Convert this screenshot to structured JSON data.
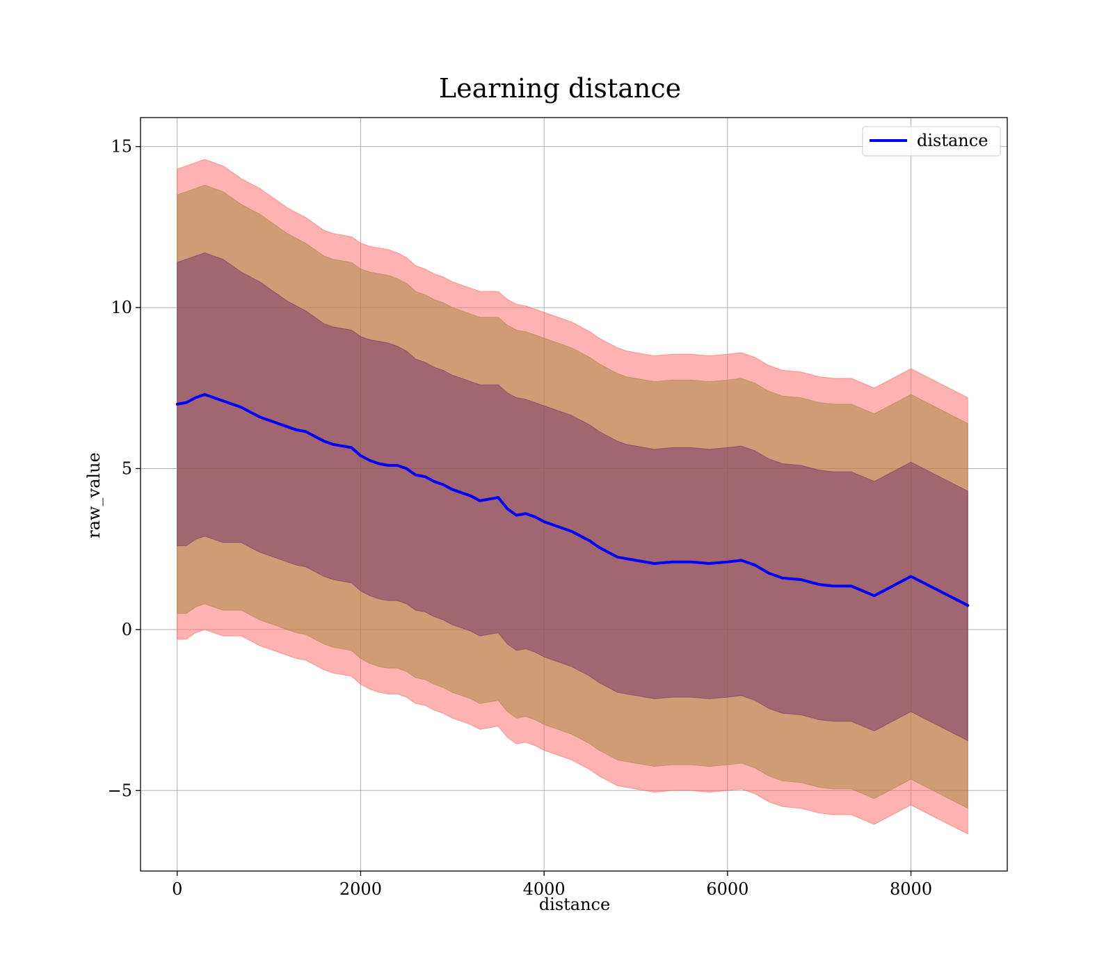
{
  "chart_data": {
    "type": "line",
    "title": "Learning distance",
    "xlabel": "distance",
    "ylabel": "raw_value",
    "xlim": [
      -400,
      9050
    ],
    "ylim": [
      -7.5,
      15.9
    ],
    "xticks": [
      0,
      2000,
      4000,
      6000,
      8000
    ],
    "xtick_labels": [
      "0",
      "2000",
      "4000",
      "6000",
      "8000"
    ],
    "yticks": [
      -5,
      0,
      5,
      10,
      15
    ],
    "ytick_labels": [
      "−5",
      "0",
      "5",
      "10",
      "15"
    ],
    "grid": true,
    "legend": {
      "placement": "top-right",
      "entries": [
        "distance"
      ]
    },
    "series": [
      {
        "name": "distance",
        "color": "#0000ff",
        "x": [
          0,
          100,
          200,
          300,
          400,
          500,
          600,
          700,
          800,
          900,
          1000,
          1100,
          1200,
          1300,
          1400,
          1500,
          1600,
          1700,
          1800,
          1900,
          2000,
          2100,
          2200,
          2300,
          2400,
          2500,
          2600,
          2700,
          2800,
          2900,
          3000,
          3100,
          3200,
          3300,
          3400,
          3500,
          3600,
          3700,
          3800,
          3900,
          4000,
          4100,
          4200,
          4300,
          4400,
          4500,
          4600,
          4700,
          4800,
          4900,
          5000,
          5200,
          5400,
          5600,
          5800,
          6000,
          6150,
          6300,
          6450,
          6600,
          6800,
          7000,
          7150,
          7350,
          7600,
          8000,
          8620
        ],
        "y": [
          7.0,
          7.05,
          7.2,
          7.3,
          7.2,
          7.1,
          7.0,
          6.9,
          6.75,
          6.6,
          6.5,
          6.4,
          6.3,
          6.2,
          6.15,
          6.0,
          5.85,
          5.75,
          5.7,
          5.65,
          5.4,
          5.25,
          5.15,
          5.1,
          5.1,
          5.0,
          4.8,
          4.75,
          4.6,
          4.5,
          4.35,
          4.25,
          4.15,
          4.0,
          4.05,
          4.1,
          3.75,
          3.55,
          3.6,
          3.5,
          3.35,
          3.25,
          3.15,
          3.05,
          2.9,
          2.75,
          2.55,
          2.4,
          2.25,
          2.2,
          2.15,
          2.05,
          2.1,
          2.1,
          2.05,
          2.1,
          2.15,
          2.0,
          1.75,
          1.6,
          1.55,
          1.4,
          1.35,
          1.35,
          1.05,
          1.65,
          0.75
        ]
      }
    ],
    "bands": [
      {
        "name": "outer",
        "color": "#ff6666",
        "opacity": 0.5,
        "upper": [
          14.3,
          14.4,
          14.5,
          14.6,
          14.5,
          14.4,
          14.2,
          14.0,
          13.85,
          13.7,
          13.5,
          13.3,
          13.1,
          12.95,
          12.8,
          12.6,
          12.4,
          12.3,
          12.25,
          12.2,
          12.0,
          11.9,
          11.85,
          11.8,
          11.7,
          11.55,
          11.3,
          11.2,
          11.05,
          10.95,
          10.8,
          10.7,
          10.6,
          10.5,
          10.5,
          10.5,
          10.25,
          10.1,
          10.05,
          9.95,
          9.85,
          9.75,
          9.65,
          9.55,
          9.4,
          9.25,
          9.05,
          8.9,
          8.75,
          8.65,
          8.6,
          8.5,
          8.55,
          8.55,
          8.5,
          8.55,
          8.6,
          8.45,
          8.2,
          8.05,
          8.0,
          7.85,
          7.8,
          7.8,
          7.5,
          8.1,
          7.2
        ],
        "lower": [
          -0.3,
          -0.3,
          -0.1,
          0.0,
          -0.1,
          -0.2,
          -0.2,
          -0.2,
          -0.35,
          -0.5,
          -0.6,
          -0.7,
          -0.8,
          -0.9,
          -0.95,
          -1.1,
          -1.25,
          -1.35,
          -1.4,
          -1.45,
          -1.7,
          -1.85,
          -1.95,
          -2.0,
          -2.0,
          -2.1,
          -2.3,
          -2.35,
          -2.5,
          -2.6,
          -2.75,
          -2.85,
          -2.95,
          -3.1,
          -3.05,
          -3.0,
          -3.35,
          -3.55,
          -3.5,
          -3.6,
          -3.75,
          -3.85,
          -3.95,
          -4.05,
          -4.2,
          -4.35,
          -4.55,
          -4.7,
          -4.85,
          -4.9,
          -4.95,
          -5.05,
          -5.0,
          -5.0,
          -5.05,
          -5.0,
          -4.95,
          -5.1,
          -5.35,
          -5.5,
          -5.55,
          -5.7,
          -5.75,
          -5.75,
          -6.05,
          -5.45,
          -6.35
        ]
      },
      {
        "name": "middle",
        "color": "#aa8844",
        "opacity": 0.55,
        "upper": [
          13.5,
          13.6,
          13.7,
          13.8,
          13.7,
          13.6,
          13.4,
          13.2,
          13.05,
          12.9,
          12.7,
          12.5,
          12.3,
          12.15,
          12.0,
          11.8,
          11.6,
          11.5,
          11.45,
          11.4,
          11.2,
          11.1,
          11.05,
          11.0,
          10.9,
          10.75,
          10.5,
          10.4,
          10.25,
          10.15,
          10.0,
          9.9,
          9.8,
          9.7,
          9.7,
          9.7,
          9.45,
          9.3,
          9.25,
          9.15,
          9.05,
          8.95,
          8.85,
          8.75,
          8.6,
          8.45,
          8.25,
          8.1,
          7.95,
          7.85,
          7.8,
          7.7,
          7.75,
          7.75,
          7.7,
          7.75,
          7.8,
          7.65,
          7.4,
          7.25,
          7.2,
          7.05,
          7.0,
          7.0,
          6.7,
          7.3,
          6.4
        ],
        "lower": [
          0.5,
          0.5,
          0.7,
          0.8,
          0.7,
          0.6,
          0.6,
          0.6,
          0.45,
          0.3,
          0.2,
          0.1,
          0.0,
          -0.1,
          -0.15,
          -0.3,
          -0.45,
          -0.55,
          -0.6,
          -0.65,
          -0.9,
          -1.05,
          -1.15,
          -1.2,
          -1.2,
          -1.3,
          -1.5,
          -1.55,
          -1.7,
          -1.8,
          -1.95,
          -2.05,
          -2.15,
          -2.3,
          -2.25,
          -2.2,
          -2.55,
          -2.75,
          -2.7,
          -2.8,
          -2.95,
          -3.05,
          -3.15,
          -3.25,
          -3.4,
          -3.55,
          -3.75,
          -3.9,
          -4.05,
          -4.1,
          -4.15,
          -4.25,
          -4.2,
          -4.2,
          -4.25,
          -4.2,
          -4.15,
          -4.3,
          -4.55,
          -4.7,
          -4.75,
          -4.9,
          -4.95,
          -4.95,
          -5.25,
          -4.65,
          -5.55
        ]
      },
      {
        "name": "inner",
        "color": "#7a3a6a",
        "opacity": 0.55,
        "upper": [
          11.4,
          11.5,
          11.6,
          11.7,
          11.6,
          11.5,
          11.3,
          11.1,
          10.95,
          10.8,
          10.6,
          10.4,
          10.2,
          10.05,
          9.9,
          9.7,
          9.5,
          9.4,
          9.35,
          9.3,
          9.1,
          9.0,
          8.95,
          8.9,
          8.8,
          8.65,
          8.4,
          8.3,
          8.15,
          8.05,
          7.9,
          7.8,
          7.7,
          7.6,
          7.6,
          7.6,
          7.35,
          7.2,
          7.15,
          7.05,
          6.95,
          6.85,
          6.75,
          6.65,
          6.5,
          6.35,
          6.15,
          6.0,
          5.85,
          5.75,
          5.7,
          5.6,
          5.65,
          5.65,
          5.6,
          5.65,
          5.7,
          5.55,
          5.3,
          5.15,
          5.1,
          4.95,
          4.9,
          4.9,
          4.6,
          5.2,
          4.3
        ],
        "lower": [
          2.6,
          2.6,
          2.8,
          2.9,
          2.8,
          2.7,
          2.7,
          2.7,
          2.55,
          2.4,
          2.3,
          2.2,
          2.1,
          2.0,
          1.95,
          1.8,
          1.65,
          1.55,
          1.5,
          1.45,
          1.2,
          1.05,
          0.95,
          0.9,
          0.9,
          0.8,
          0.6,
          0.55,
          0.4,
          0.3,
          0.15,
          0.05,
          -0.05,
          -0.2,
          -0.15,
          -0.1,
          -0.45,
          -0.65,
          -0.6,
          -0.7,
          -0.85,
          -0.95,
          -1.05,
          -1.15,
          -1.3,
          -1.45,
          -1.65,
          -1.8,
          -1.95,
          -2.0,
          -2.05,
          -2.15,
          -2.1,
          -2.1,
          -2.15,
          -2.1,
          -2.05,
          -2.2,
          -2.45,
          -2.6,
          -2.65,
          -2.8,
          -2.85,
          -2.85,
          -3.15,
          -2.55,
          -3.45
        ]
      }
    ]
  }
}
